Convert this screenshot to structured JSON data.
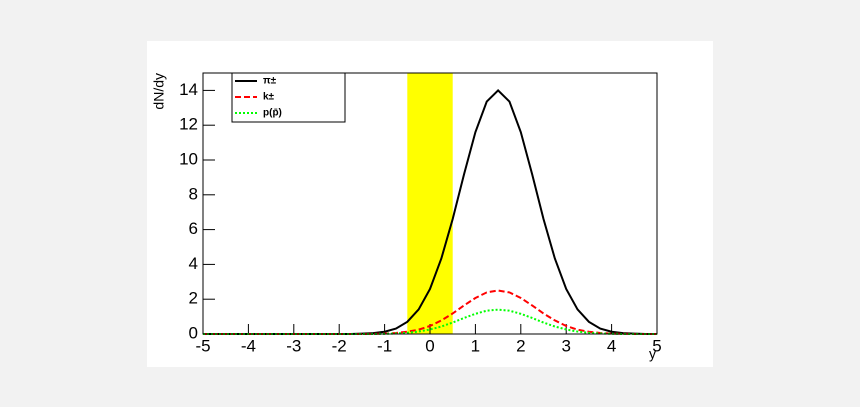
{
  "chart_data": {
    "type": "line",
    "x_label": "y",
    "y_label": "dN/dy",
    "x": [
      -5,
      -4.75,
      -4.5,
      -4.25,
      -4,
      -3.75,
      -3.5,
      -3.25,
      -3,
      -2.75,
      -2.5,
      -2.25,
      -2,
      -1.75,
      -1.5,
      -1.25,
      -1,
      -0.75,
      -0.5,
      -0.25,
      0,
      0.25,
      0.5,
      0.75,
      1,
      1.25,
      1.5,
      1.75,
      2,
      2.25,
      2.5,
      2.75,
      3,
      3.25,
      3.5,
      3.75,
      4,
      4.25,
      4.5,
      4.75,
      5
    ],
    "series": [
      {
        "name": "π±",
        "color": "#000000",
        "dash": "solid",
        "values": [
          0,
          0,
          0,
          0,
          0,
          0,
          0,
          0,
          0,
          0,
          0,
          0,
          0,
          0,
          0.02,
          0.05,
          0.13,
          0.31,
          0.7,
          1.41,
          2.59,
          4.34,
          6.61,
          9.18,
          11.6,
          13.36,
          14,
          13.36,
          11.6,
          9.18,
          6.61,
          4.34,
          2.59,
          1.41,
          0.7,
          0.31,
          0.13,
          0.05,
          0.02,
          0,
          0
        ]
      },
      {
        "name": "k±",
        "color": "#ff0000",
        "dash": "dashed",
        "values": [
          0,
          0,
          0,
          0,
          0,
          0,
          0,
          0,
          0,
          0,
          0,
          0,
          0,
          0,
          0,
          0.01,
          0.02,
          0.06,
          0.13,
          0.25,
          0.46,
          0.78,
          1.18,
          1.64,
          2.07,
          2.39,
          2.5,
          2.39,
          2.07,
          1.64,
          1.18,
          0.78,
          0.46,
          0.25,
          0.13,
          0.06,
          0.02,
          0.01,
          0,
          0,
          0
        ]
      },
      {
        "name": "p(p̄)",
        "color": "#00ff00",
        "dash": "dotted",
        "values": [
          0,
          0,
          0,
          0,
          0,
          0,
          0,
          0,
          0,
          0,
          0,
          0,
          0,
          0,
          0,
          0,
          0.01,
          0.03,
          0.07,
          0.14,
          0.26,
          0.43,
          0.66,
          0.92,
          1.16,
          1.34,
          1.4,
          1.34,
          1.16,
          0.92,
          0.66,
          0.43,
          0.26,
          0.14,
          0.07,
          0.03,
          0.01,
          0,
          0,
          0,
          0
        ]
      }
    ],
    "band": {
      "x": [
        -0.5,
        0.5
      ],
      "color": "#ffff00"
    },
    "xlim": [
      -5,
      5
    ],
    "ylim": [
      0,
      15
    ],
    "xticks": [
      -5,
      -4,
      -3,
      -2,
      -1,
      0,
      1,
      2,
      3,
      4,
      5
    ],
    "yticks": [
      0,
      2,
      4,
      6,
      8,
      10,
      12,
      14
    ],
    "legend": "top-left"
  }
}
